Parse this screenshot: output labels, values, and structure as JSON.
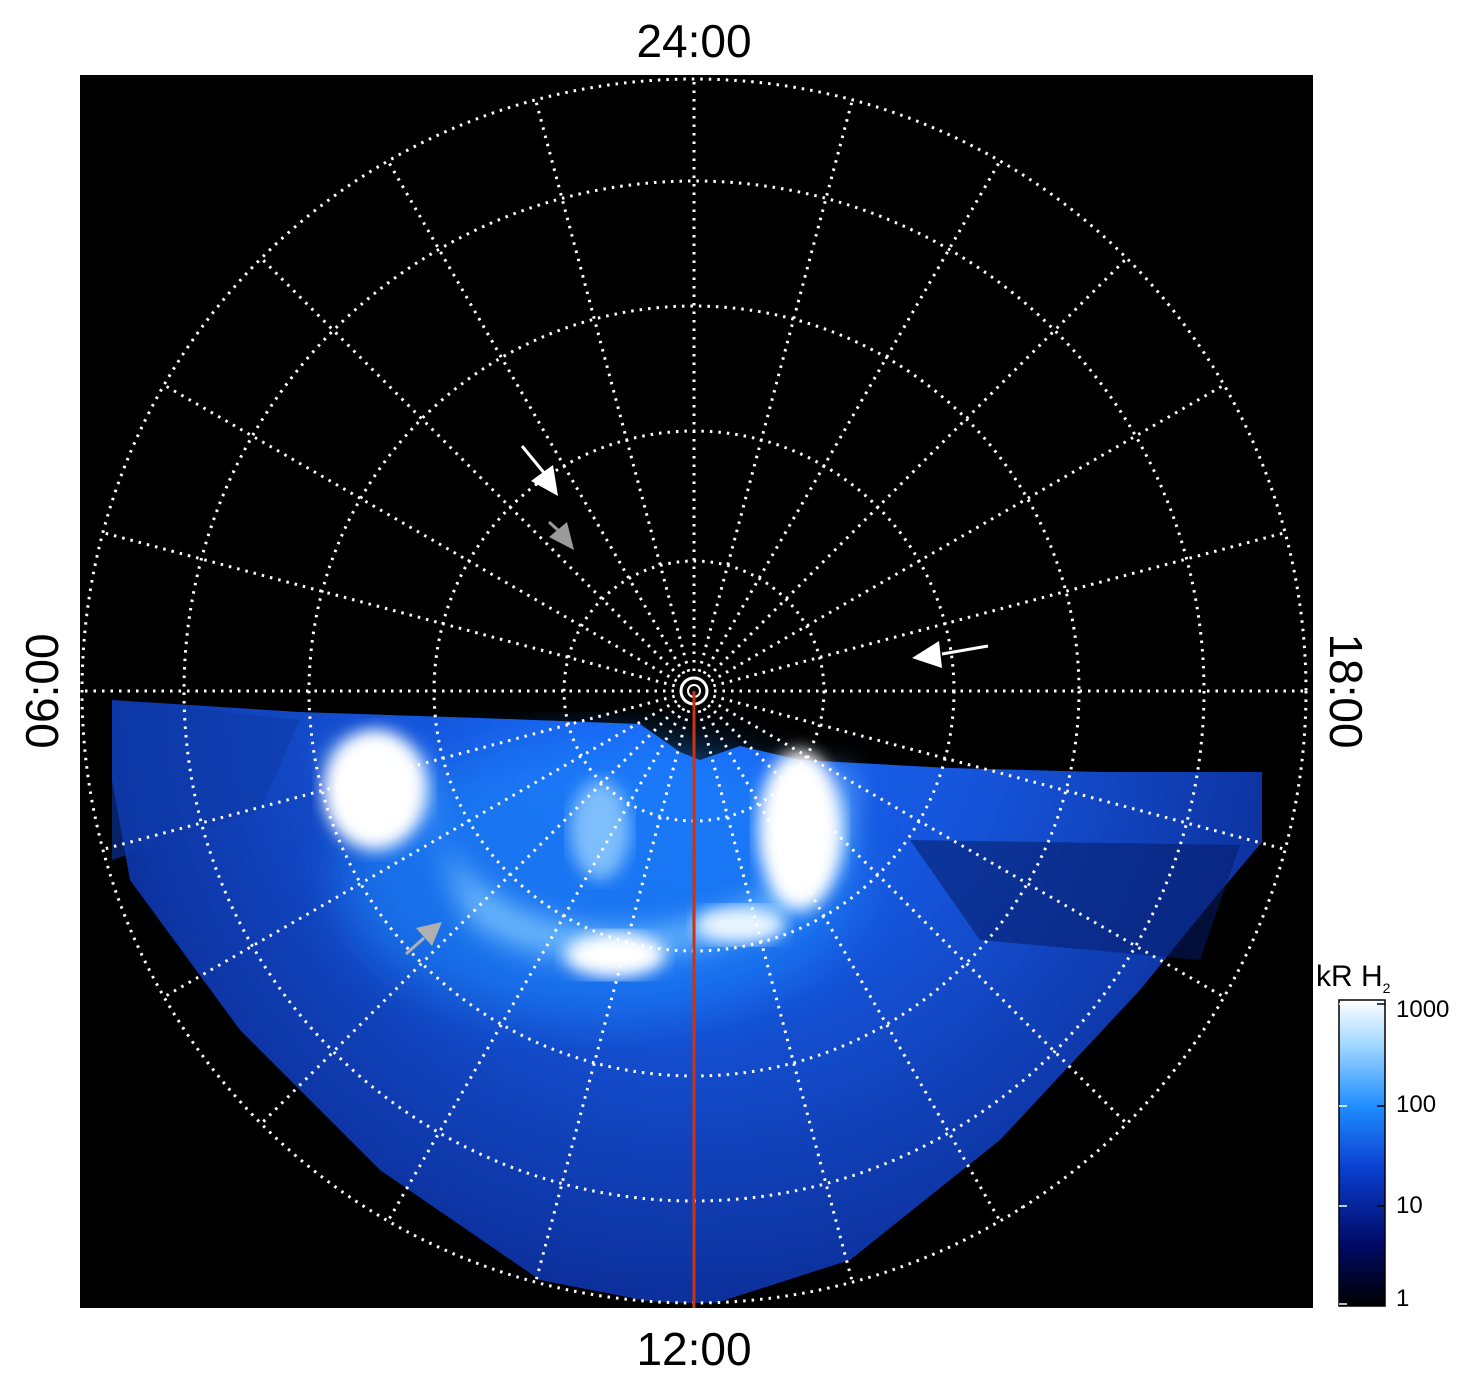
{
  "local_time_labels": {
    "top": "24:00",
    "bottom": "12:00",
    "left": "06:00",
    "right": "18:00"
  },
  "colorbar": {
    "unit_main": "kR H",
    "unit_sub": "2",
    "ticks": [
      "1000",
      "100",
      "10",
      "1"
    ],
    "scale": "log",
    "colors": [
      "#000000",
      "#000a66",
      "#0b3fd0",
      "#1e8cff",
      "#9fd6ff",
      "#ffffff"
    ]
  },
  "colors": {
    "background": "#000000",
    "grid": "#ffffff",
    "meridian": "#cc3311",
    "arrow_white": "#ffffff",
    "arrow_gray": "#b0b0b0"
  }
}
